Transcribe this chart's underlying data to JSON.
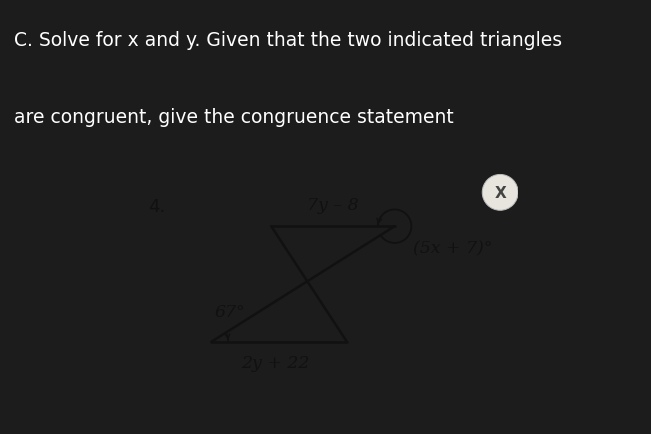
{
  "bg_color_dark": "#1c1c1c",
  "bg_color_photo": "#d0ccc4",
  "title_line1": "C. Solve for x and y. Given that the two indicated triangles",
  "title_line2": "are congruent, give the congruence statement",
  "title_color": "#ffffff",
  "title_fontsize": 13.5,
  "problem_number": "4.",
  "label_7y8": "7y – 8",
  "label_5x7": "(5x + 7)°",
  "label_67": "67°",
  "label_2y22": "2y + 22",
  "label_fontsize": 12.5,
  "triangle_color": "#111111",
  "close_btn_color": "#e8e4de",
  "close_x_color": "#444444"
}
